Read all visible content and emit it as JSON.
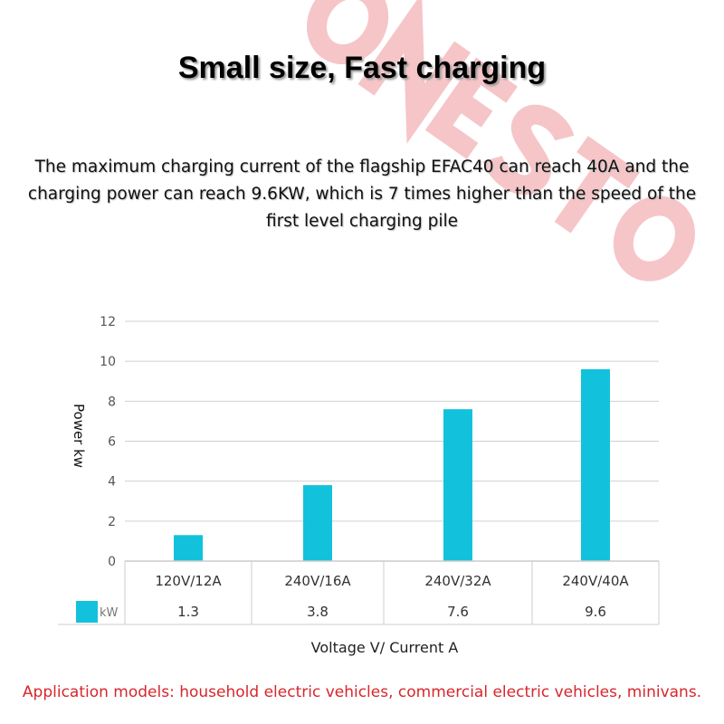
{
  "watermark": "ONESTO",
  "title": "Small size, Fast charging",
  "subtitle": "The maximum charging current of the flagship EFAC40 can reach 40A and the charging power can reach 9.6KW, which is 7 times higher than the speed of the first level charging pile",
  "footer": "Application models: household electric vehicles, commercial electric vehicles, minivans.",
  "colors": {
    "bar": "#12c2dc",
    "watermark": "#f6c5c8",
    "footer": "#d8262c"
  },
  "chart_data": {
    "type": "bar",
    "categories": [
      "120V/12A",
      "240V/16A",
      "240V/32A",
      "240V/40A"
    ],
    "series": [
      {
        "name": "kW",
        "values": [
          1.3,
          3.8,
          7.6,
          9.6
        ]
      }
    ],
    "xlabel": "Voltage V/ Current A",
    "ylabel": "Power kw",
    "ylim": [
      0,
      12
    ],
    "yticks": [
      "0",
      "2",
      "4",
      "6",
      "8",
      "10",
      "12"
    ],
    "grid": true,
    "data_table": true,
    "legend": "bottom-left"
  }
}
